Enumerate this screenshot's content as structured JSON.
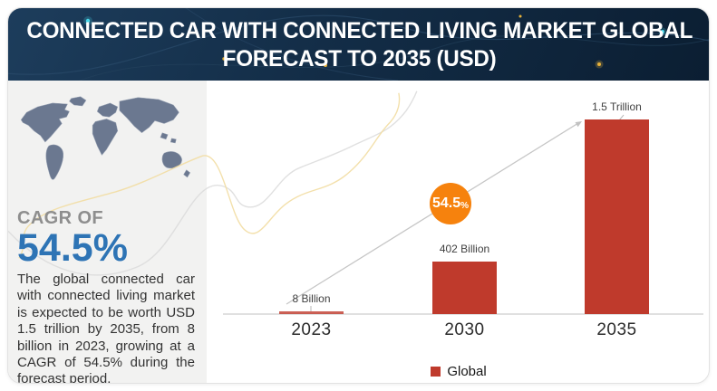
{
  "header": {
    "title_line1": "CONNECTED CAR WITH CONNECTED LIVING MARKET GLOBAL",
    "title_line2": "FORECAST TO 2035 (USD)"
  },
  "sidebar": {
    "cagr_label": "CAGR OF",
    "cagr_value": "54.5%",
    "description": "The global connected car with connected living market is expected to be worth USD 1.5 trillion by 2035, from 8 billion in 2023, growing at a CAGR of 54.5% during the forecast period."
  },
  "chart": {
    "badge_value": "54.5",
    "badge_unit": "%"
  },
  "chart_data": {
    "type": "bar",
    "title": "Connected Car with Connected Living Market Global Forecast to 2035 (USD)",
    "categories": [
      "2023",
      "2030",
      "2035"
    ],
    "series": [
      {
        "name": "Global",
        "values": [
          8,
          402,
          1500
        ]
      }
    ],
    "unit": "USD Billion",
    "value_labels": [
      "8 Billion",
      "402 Billion",
      "1.5 Trillion"
    ],
    "annotations": [
      "CAGR 54.5%"
    ],
    "ylim": [
      0,
      1500
    ],
    "grid": false,
    "legend_position": "bottom",
    "bar_color": "#bf3a2c"
  },
  "colors": {
    "bar_red": "#bf3a2c",
    "cagr_blue": "#2e74b5",
    "badge_orange": "#f6820d",
    "header_navy": "#132d47",
    "sidebar_gray": "#f2f2f1"
  }
}
